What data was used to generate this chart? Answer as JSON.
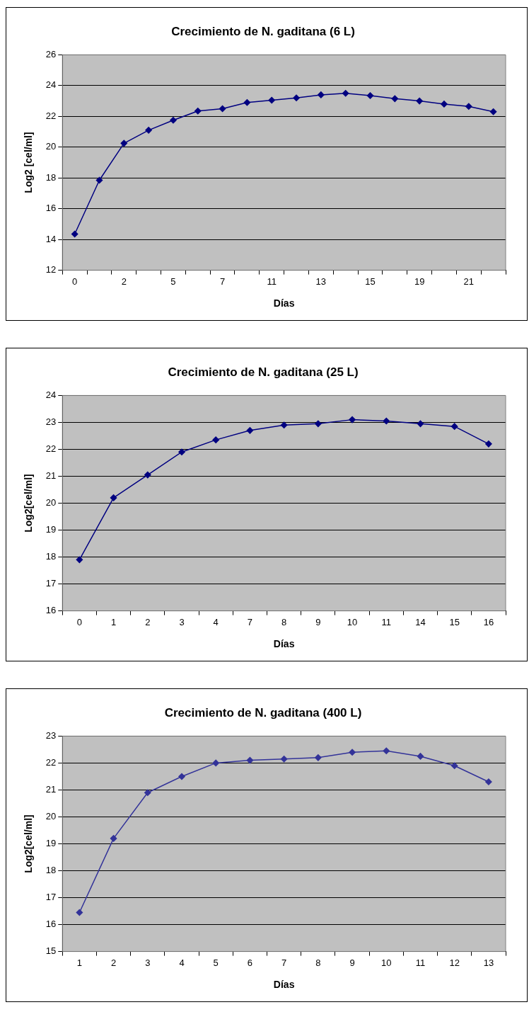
{
  "chart_data": [
    {
      "type": "line",
      "title": "Crecimiento de N. gaditana (6 L)",
      "xlabel": "Días",
      "ylabel": "Log2 [cel/ml]",
      "categories": [
        "0",
        null,
        "2",
        null,
        "5",
        null,
        "7",
        null,
        "11",
        null,
        "13",
        null,
        "15",
        null,
        "19",
        null,
        "21",
        null
      ],
      "series": [
        {
          "color": "#000080",
          "values": [
            14.35,
            17.85,
            20.25,
            21.1,
            21.75,
            22.35,
            22.5,
            22.9,
            23.05,
            23.2,
            23.4,
            23.5,
            23.35,
            23.15,
            23.0,
            22.8,
            22.65,
            22.3
          ]
        }
      ],
      "ylim": [
        12,
        26
      ],
      "yticks": [
        12,
        14,
        16,
        18,
        20,
        22,
        24,
        26
      ],
      "grid": "y",
      "legend": false,
      "marker": "diamond",
      "line_style": "solid"
    },
    {
      "type": "line",
      "title": "Crecimiento de N. gaditana (25 L)",
      "xlabel": "Días",
      "ylabel": "Log2[cel/ml]",
      "categories": [
        "0",
        "1",
        "2",
        "3",
        "4",
        "7",
        "8",
        "9",
        "10",
        "11",
        "14",
        "15",
        "16"
      ],
      "series": [
        {
          "color": "#000080",
          "values": [
            17.9,
            20.2,
            21.05,
            21.9,
            22.35,
            22.7,
            22.9,
            22.95,
            23.1,
            23.05,
            22.95,
            22.85,
            22.2
          ]
        }
      ],
      "ylim": [
        16,
        24
      ],
      "yticks": [
        16,
        17,
        18,
        19,
        20,
        21,
        22,
        23,
        24
      ],
      "grid": "y",
      "legend": false,
      "marker": "diamond",
      "line_style": "solid"
    },
    {
      "type": "line",
      "title": "Crecimiento de N. gaditana (400 L)",
      "xlabel": "Días",
      "ylabel": "Log2[cel/ml]",
      "categories": [
        "1",
        "2",
        "3",
        "4",
        "5",
        "6",
        "7",
        "8",
        "9",
        "10",
        "11",
        "12",
        "13"
      ],
      "series": [
        {
          "color": "#333399",
          "values": [
            16.45,
            19.2,
            20.9,
            21.5,
            22.0,
            22.1,
            22.15,
            22.2,
            22.4,
            22.45,
            22.25,
            21.9,
            21.3
          ]
        }
      ],
      "ylim": [
        15,
        23
      ],
      "yticks": [
        15,
        16,
        17,
        18,
        19,
        20,
        21,
        22,
        23
      ],
      "grid": "y",
      "legend": false,
      "marker": "diamond",
      "line_style": "solid"
    }
  ]
}
